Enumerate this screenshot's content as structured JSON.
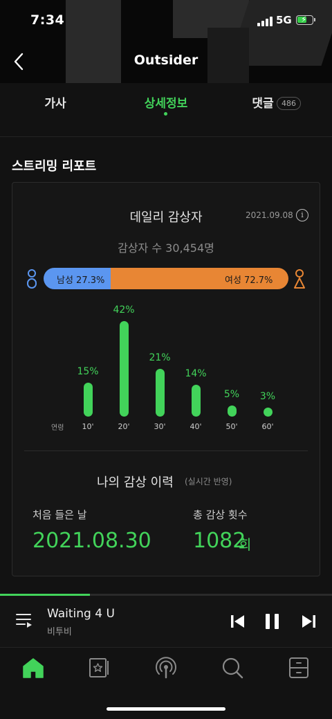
{
  "status_bar": {
    "time": "7:34",
    "network": "5G"
  },
  "header": {
    "title": "Outsider"
  },
  "tabs": [
    {
      "label": "가사"
    },
    {
      "label": "상세정보"
    },
    {
      "label": "댓글",
      "badge": "486"
    }
  ],
  "section": {
    "title": "스트리밍 리포트"
  },
  "daily": {
    "title": "데일리 감상자",
    "date": "2021.09.08",
    "listeners": "감상자 수 30,454명",
    "male_label": "남성 27.3%",
    "female_label": "여성 72.7%",
    "male_ratio": 0.273,
    "female_ratio": 0.727,
    "age_title": "연령"
  },
  "chart_data": {
    "type": "bar",
    "categories": [
      "10'",
      "20'",
      "30'",
      "40'",
      "50'",
      "60'"
    ],
    "values": [
      15,
      42,
      21,
      14,
      5,
      3
    ],
    "value_labels": [
      "15%",
      "42%",
      "21%",
      "14%",
      "5%",
      "3%"
    ],
    "ylim": [
      0,
      42
    ]
  },
  "my_history": {
    "title": "나의 감상 이력",
    "subtitle": "(실시간 반영)",
    "first_label": "처음 들은 날",
    "first_value": "2021.08.30",
    "count_label": "총 감상 횟수",
    "count_value": "1082",
    "count_unit": "회"
  },
  "player": {
    "song": "Waiting 4 U",
    "artist": "비투비",
    "progress": 0.27
  },
  "colors": {
    "accent": "#42d35a",
    "male": "#5b96f0",
    "female": "#e88634",
    "background": "#121212"
  },
  "icons": {
    "back": "chevron-left-icon",
    "info": "info-icon",
    "male": "male-person-icon",
    "female": "female-person-icon",
    "queue": "playlist-icon",
    "prev": "skip-previous-icon",
    "pause": "pause-icon",
    "next": "skip-next-icon",
    "nav": [
      "home-icon",
      "library-icon",
      "podcast-icon",
      "search-icon",
      "storage-icon"
    ]
  }
}
